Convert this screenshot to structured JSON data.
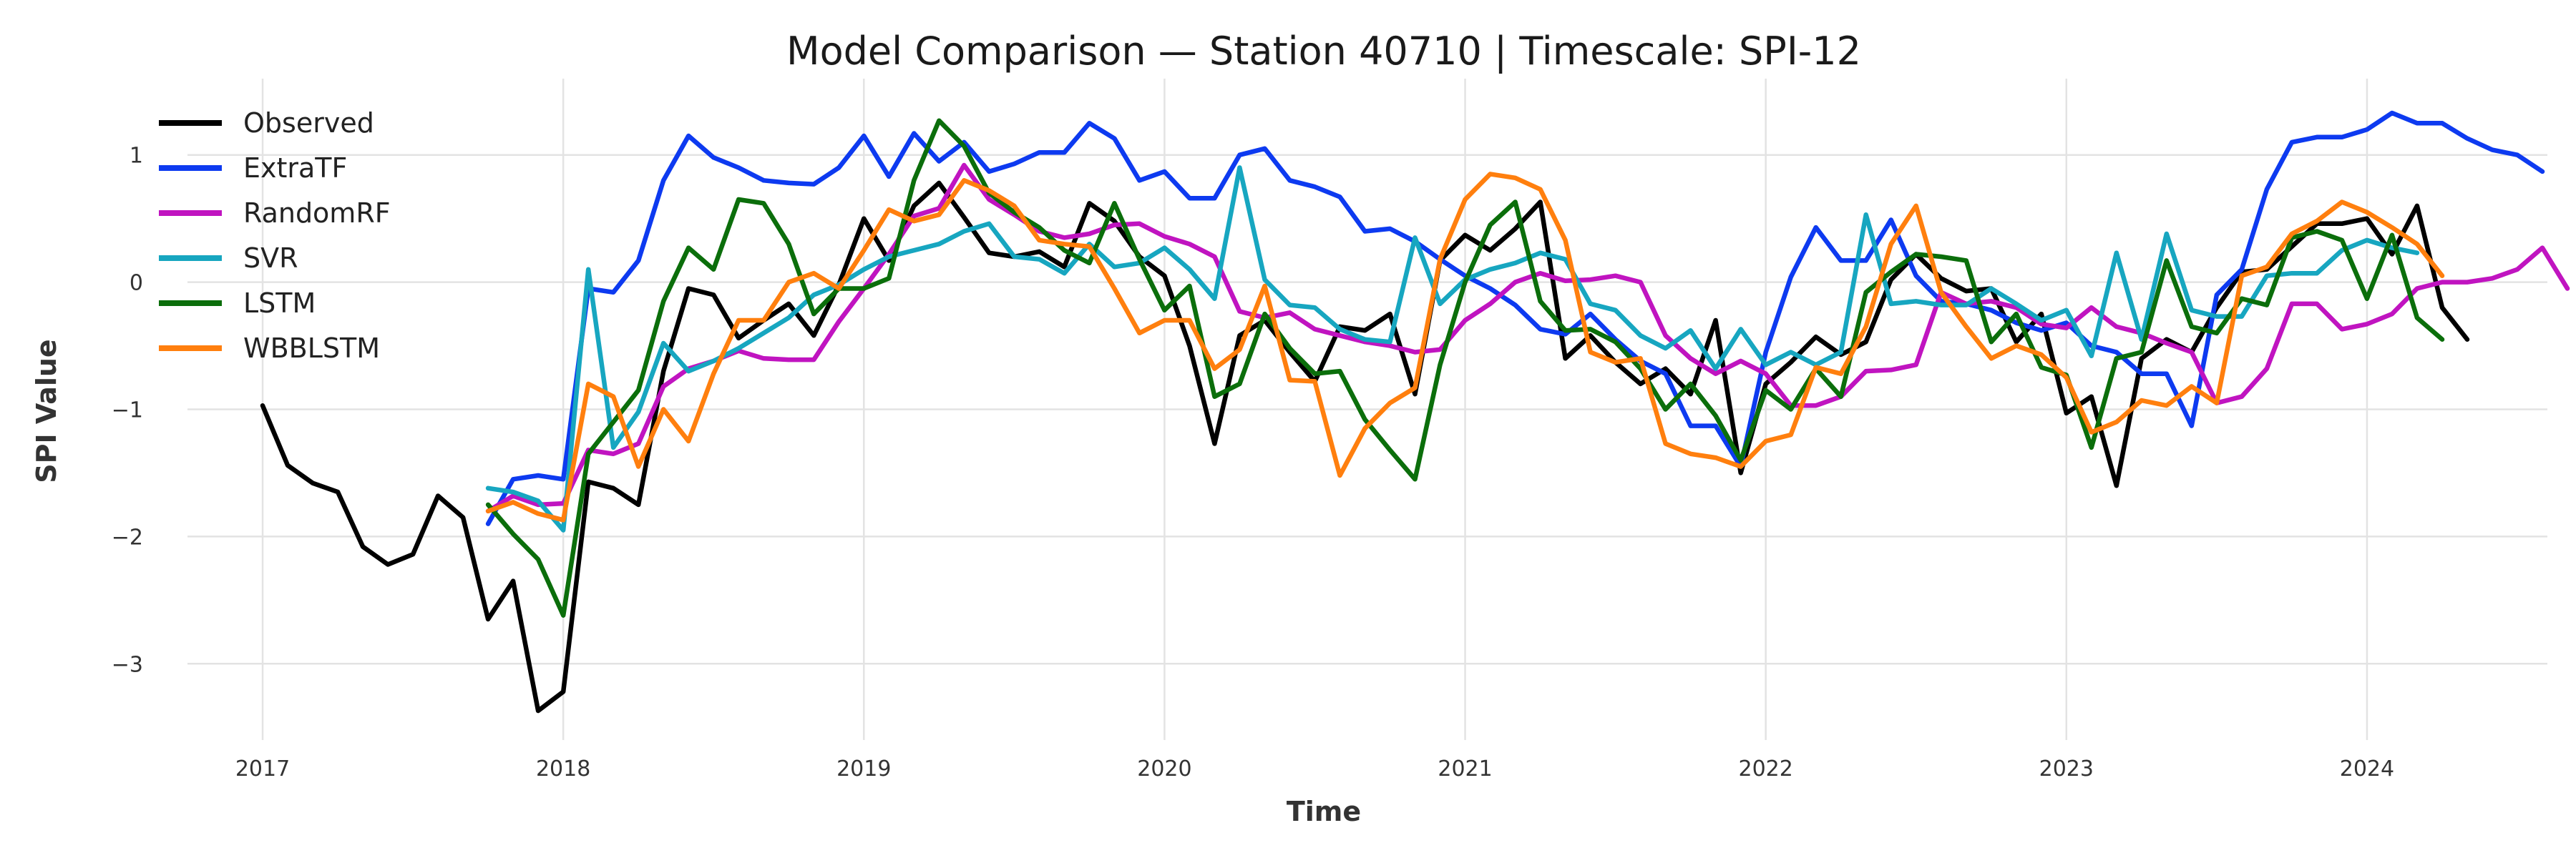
{
  "chart_data": {
    "type": "line",
    "title": "Model Comparison — Station 40710 | Timescale: SPI-12",
    "xlabel": "Time",
    "ylabel": "SPI Value",
    "xlim": [
      2016.75,
      2024.6
    ],
    "ylim": [
      -3.6,
      1.6
    ],
    "x_ticks": [
      2017,
      2018,
      2019,
      2020,
      2021,
      2022,
      2023,
      2024
    ],
    "x_tick_labels": [
      "2017",
      "2018",
      "2019",
      "2020",
      "2021",
      "2022",
      "2023",
      "2024"
    ],
    "y_ticks": [
      -3,
      -2,
      -1,
      0,
      1
    ],
    "y_tick_labels": [
      "−3",
      "−2",
      "−1",
      "0",
      "1"
    ],
    "grid": true,
    "legend_position": "top-left",
    "x_start": "2017-01",
    "x_step": "1 month",
    "series": [
      {
        "name": "Observed",
        "color": "#000000",
        "start_index": 0,
        "values": [
          -0.97,
          -1.44,
          -1.58,
          -1.65,
          -2.08,
          -2.22,
          -2.14,
          -1.68,
          -1.85,
          -2.65,
          -2.35,
          -3.37,
          -3.22,
          -1.57,
          -1.62,
          -1.75,
          -0.7,
          -0.05,
          -0.1,
          -0.44,
          -0.3,
          -0.17,
          -0.42,
          -0.02,
          0.5,
          0.17,
          0.6,
          0.78,
          0.51,
          0.23,
          0.2,
          0.24,
          0.12,
          0.62,
          0.48,
          0.2,
          0.05,
          -0.5,
          -1.27,
          -0.42,
          -0.3,
          -0.55,
          -0.78,
          -0.35,
          -0.38,
          -0.25,
          -0.88,
          0.17,
          0.37,
          0.25,
          0.42,
          0.63,
          -0.6,
          -0.42,
          -0.63,
          -0.8,
          -0.68,
          -0.88,
          -0.3,
          -1.5,
          -0.8,
          -0.63,
          -0.43,
          -0.57,
          -0.47,
          0.02,
          0.22,
          0.03,
          -0.07,
          -0.05,
          -0.47,
          -0.25,
          -1.03,
          -0.9,
          -1.6,
          -0.6,
          -0.45,
          -0.55,
          -0.2,
          0.08,
          0.1,
          0.28,
          0.46,
          0.46,
          0.5,
          0.22,
          0.6,
          -0.2,
          -0.45
        ]
      },
      {
        "name": "ExtraTF",
        "color": "#0d3af0",
        "start_index": 9,
        "values": [
          -1.9,
          -1.55,
          -1.52,
          -1.55,
          -0.05,
          -0.08,
          0.17,
          0.8,
          1.15,
          0.98,
          0.9,
          0.8,
          0.78,
          0.77,
          0.9,
          1.15,
          0.83,
          1.17,
          0.95,
          1.1,
          0.87,
          0.93,
          1.02,
          1.02,
          1.25,
          1.13,
          0.8,
          0.87,
          0.66,
          0.66,
          1.0,
          1.05,
          0.8,
          0.75,
          0.67,
          0.4,
          0.42,
          0.32,
          0.18,
          0.05,
          -0.05,
          -0.18,
          -0.37,
          -0.41,
          -0.25,
          -0.45,
          -0.62,
          -0.72,
          -1.13,
          -1.13,
          -1.45,
          -0.55,
          0.04,
          0.43,
          0.17,
          0.17,
          0.49,
          0.05,
          -0.15,
          -0.17,
          -0.22,
          -0.32,
          -0.38,
          -0.32,
          -0.5,
          -0.55,
          -0.72,
          -0.72,
          -1.13,
          -0.1,
          0.1,
          0.73,
          1.1,
          1.14,
          1.14,
          1.2,
          1.33,
          1.25,
          1.25,
          1.13,
          1.04,
          1.0,
          0.87
        ]
      },
      {
        "name": "RandomRF",
        "color": "#c014c0",
        "start_index": 9,
        "values": [
          -1.8,
          -1.68,
          -1.75,
          -1.74,
          -1.32,
          -1.35,
          -1.27,
          -0.82,
          -0.68,
          -0.62,
          -0.54,
          -0.6,
          -0.61,
          -0.61,
          -0.31,
          -0.05,
          0.22,
          0.52,
          0.58,
          0.92,
          0.65,
          0.53,
          0.4,
          0.35,
          0.38,
          0.45,
          0.46,
          0.36,
          0.3,
          0.2,
          -0.23,
          -0.28,
          -0.24,
          -0.37,
          -0.42,
          -0.47,
          -0.5,
          -0.55,
          -0.53,
          -0.3,
          -0.17,
          0.0,
          0.07,
          0.01,
          0.02,
          0.05,
          0.0,
          -0.42,
          -0.6,
          -0.72,
          -0.62,
          -0.72,
          -0.97,
          -0.97,
          -0.9,
          -0.7,
          -0.69,
          -0.65,
          -0.08,
          -0.17,
          -0.15,
          -0.2,
          -0.33,
          -0.36,
          -0.2,
          -0.35,
          -0.4,
          -0.48,
          -0.55,
          -0.95,
          -0.9,
          -0.68,
          -0.17,
          -0.17,
          -0.37,
          -0.33,
          -0.25,
          -0.05,
          0.0,
          0.0,
          0.03,
          0.1,
          0.27,
          -0.05
        ]
      },
      {
        "name": "SVR",
        "color": "#17a6c0",
        "start_index": 9,
        "values": [
          -1.62,
          -1.65,
          -1.72,
          -1.95,
          0.1,
          -1.3,
          -1.02,
          -0.48,
          -0.7,
          -0.62,
          -0.52,
          -0.4,
          -0.28,
          -0.1,
          -0.02,
          0.1,
          0.2,
          0.25,
          0.3,
          0.4,
          0.46,
          0.2,
          0.18,
          0.07,
          0.3,
          0.12,
          0.15,
          0.27,
          0.1,
          -0.13,
          0.9,
          0.02,
          -0.18,
          -0.2,
          -0.37,
          -0.45,
          -0.47,
          0.35,
          -0.17,
          0.02,
          0.1,
          0.15,
          0.23,
          0.18,
          -0.17,
          -0.22,
          -0.42,
          -0.52,
          -0.38,
          -0.68,
          -0.37,
          -0.65,
          -0.55,
          -0.65,
          -0.55,
          0.53,
          -0.17,
          -0.15,
          -0.18,
          -0.18,
          -0.05,
          -0.17,
          -0.3,
          -0.22,
          -0.58,
          0.23,
          -0.45,
          0.38,
          -0.22,
          -0.27,
          -0.27,
          0.05,
          0.07,
          0.07,
          0.25,
          0.33,
          0.27,
          0.23
        ]
      },
      {
        "name": "LSTM",
        "color": "#0b6e0b",
        "start_index": 9,
        "values": [
          -1.75,
          -1.98,
          -2.18,
          -2.62,
          -1.35,
          -1.1,
          -0.85,
          -0.15,
          0.27,
          0.1,
          0.65,
          0.62,
          0.3,
          -0.25,
          -0.05,
          -0.05,
          0.03,
          0.8,
          1.27,
          1.07,
          0.7,
          0.55,
          0.43,
          0.25,
          0.15,
          0.62,
          0.18,
          -0.22,
          -0.03,
          -0.9,
          -0.8,
          -0.25,
          -0.52,
          -0.72,
          -0.7,
          -1.08,
          -1.32,
          -1.55,
          -0.65,
          0.0,
          0.45,
          0.63,
          -0.15,
          -0.38,
          -0.37,
          -0.47,
          -0.68,
          -1.0,
          -0.8,
          -1.05,
          -1.4,
          -0.85,
          -1.0,
          -0.68,
          -0.9,
          -0.08,
          0.08,
          0.22,
          0.2,
          0.17,
          -0.47,
          -0.25,
          -0.67,
          -0.73,
          -1.3,
          -0.6,
          -0.55,
          0.17,
          -0.35,
          -0.4,
          -0.13,
          -0.18,
          0.35,
          0.4,
          0.33,
          -0.13,
          0.37,
          -0.28,
          -0.45
        ]
      },
      {
        "name": "WBBLSTM",
        "color": "#ff7f0e",
        "start_index": 9,
        "values": [
          -1.8,
          -1.73,
          -1.82,
          -1.87,
          -0.8,
          -0.9,
          -1.45,
          -1.0,
          -1.25,
          -0.72,
          -0.3,
          -0.3,
          0.0,
          0.07,
          -0.05,
          0.25,
          0.57,
          0.48,
          0.53,
          0.8,
          0.72,
          0.6,
          0.33,
          0.3,
          0.28,
          -0.05,
          -0.4,
          -0.3,
          -0.3,
          -0.68,
          -0.53,
          -0.03,
          -0.77,
          -0.78,
          -1.52,
          -1.15,
          -0.95,
          -0.83,
          0.18,
          0.65,
          0.85,
          0.82,
          0.73,
          0.33,
          -0.55,
          -0.63,
          -0.6,
          -1.27,
          -1.35,
          -1.38,
          -1.45,
          -1.25,
          -1.2,
          -0.67,
          -0.72,
          -0.35,
          0.3,
          0.6,
          -0.08,
          -0.35,
          -0.6,
          -0.5,
          -0.57,
          -0.75,
          -1.18,
          -1.1,
          -0.93,
          -0.97,
          -0.82,
          -0.95,
          0.05,
          0.12,
          0.38,
          0.48,
          0.63,
          0.55,
          0.43,
          0.3,
          0.05
        ]
      }
    ]
  }
}
